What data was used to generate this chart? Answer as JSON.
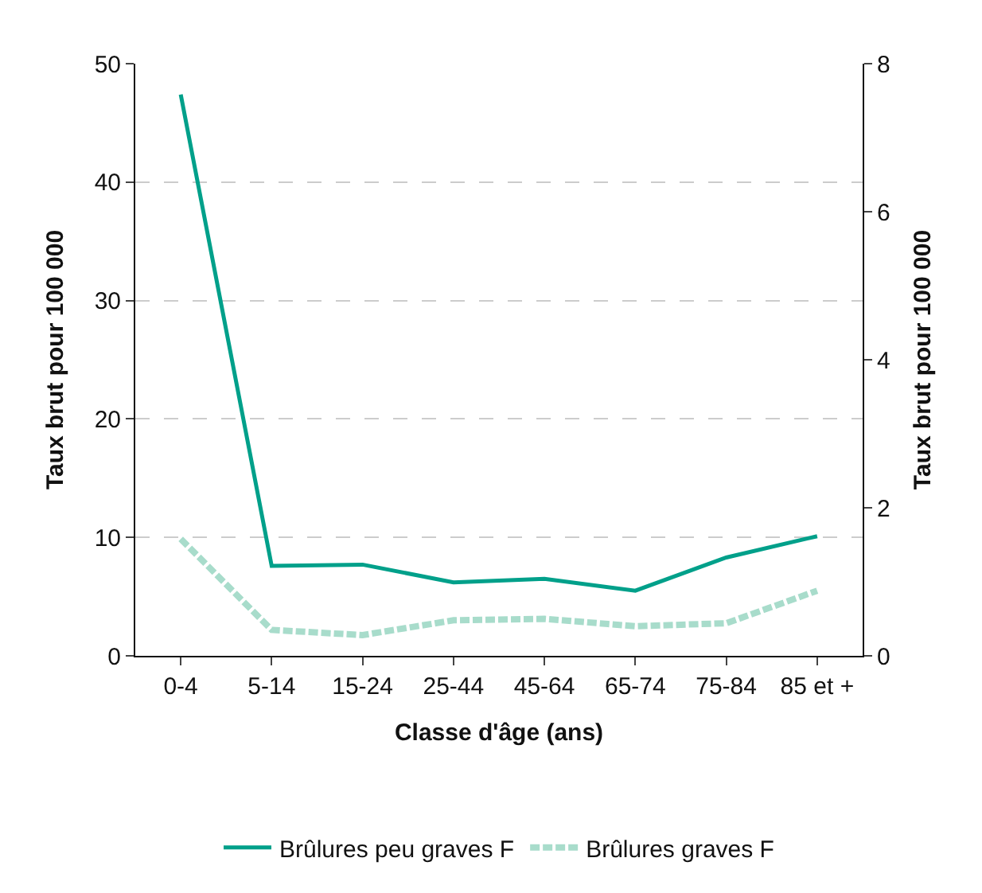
{
  "chart_data": {
    "type": "line",
    "xlabel": "Classe d'âge (ans)",
    "ylabel": "Taux brut pour 100 000",
    "y2label": "Taux brut pour 100 000",
    "categories": [
      "0-4",
      "5-14",
      "15-24",
      "25-44",
      "45-64",
      "65-74",
      "75-84",
      "85 et +"
    ],
    "series": [
      {
        "name": "Brûlures peu graves F",
        "color": "#00a08a",
        "line_style": "solid",
        "values": [
          47.4,
          7.6,
          7.7,
          6.2,
          6.5,
          5.5,
          8.3,
          10.1
        ]
      },
      {
        "name": "Brûlures graves F",
        "color": "#a8dccb",
        "line_style": "dashed",
        "axis": "y2",
        "values": [
          1.58,
          0.35,
          0.28,
          0.48,
          0.5,
          0.4,
          0.44,
          0.88
        ]
      }
    ],
    "ylim": [
      0,
      50
    ],
    "yticks": [
      0,
      10,
      20,
      30,
      40,
      50
    ],
    "y2lim": [
      0,
      8
    ],
    "y2ticks": [
      0,
      2,
      4,
      6,
      8
    ],
    "grid": "y",
    "legend": "bottom",
    "marker": "none"
  }
}
